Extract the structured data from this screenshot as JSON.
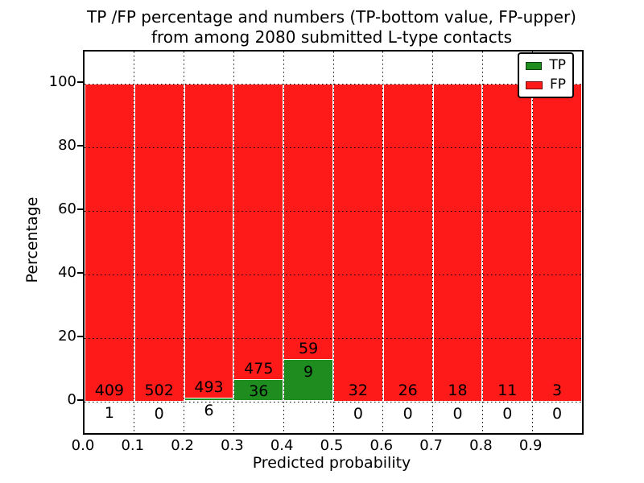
{
  "chart_data": {
    "type": "bar",
    "title": "TP /FP percentage and numbers (TP-bottom value, FP-upper)",
    "subtitle": "from among 2080 submitted L-type contacts",
    "xlabel": "Predicted probability",
    "ylabel": "Percentage",
    "xlim": [
      0.0,
      1.0
    ],
    "ylim": [
      -10,
      110
    ],
    "x_tick_labels": [
      "0.0",
      "0.1",
      "0.2",
      "0.3",
      "0.4",
      "0.5",
      "0.6",
      "0.7",
      "0.8",
      "0.9"
    ],
    "y_tick_values": [
      0,
      20,
      40,
      60,
      80,
      100
    ],
    "grid": "dotted",
    "legend": {
      "position": "upper right",
      "entries": [
        {
          "label": "TP",
          "color": "#1f8c1f"
        },
        {
          "label": "FP",
          "color": "#ff1a1a"
        }
      ]
    },
    "colors": {
      "tp": "#1f8c1f",
      "fp": "#ff1a1a",
      "bar_edge": "#ffffff"
    },
    "bin_width": 0.1,
    "fp_bar_top_pct": 100,
    "bins": [
      {
        "range": "0.0-0.1",
        "tp": 1,
        "fp": 409,
        "tp_pct": 0.24
      },
      {
        "range": "0.1-0.2",
        "tp": 0,
        "fp": 502,
        "tp_pct": 0.0
      },
      {
        "range": "0.2-0.3",
        "tp": 6,
        "fp": 493,
        "tp_pct": 1.2
      },
      {
        "range": "0.3-0.4",
        "tp": 36,
        "fp": 475,
        "tp_pct": 7.05
      },
      {
        "range": "0.4-0.5",
        "tp": 9,
        "fp": 59,
        "tp_pct": 13.24
      },
      {
        "range": "0.5-0.6",
        "tp": 0,
        "fp": 32,
        "tp_pct": 0.0
      },
      {
        "range": "0.6-0.7",
        "tp": 0,
        "fp": 26,
        "tp_pct": 0.0
      },
      {
        "range": "0.7-0.8",
        "tp": 0,
        "fp": 18,
        "tp_pct": 0.0
      },
      {
        "range": "0.8-0.9",
        "tp": 0,
        "fp": 11,
        "tp_pct": 0.0
      },
      {
        "range": "0.9-1.0",
        "tp": 0,
        "fp": 3,
        "tp_pct": 0.0
      }
    ]
  }
}
